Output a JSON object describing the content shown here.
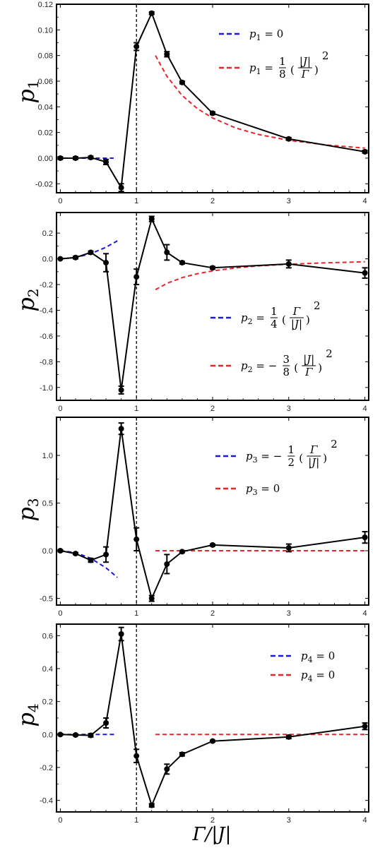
{
  "chart_data": [
    {
      "type": "line",
      "ylabel": "p1",
      "xlim": [
        -0.05,
        4.05
      ],
      "ylim": [
        -0.027,
        0.12
      ],
      "yticks": [
        -0.02,
        0.0,
        0.02,
        0.04,
        0.06,
        0.08,
        0.1,
        0.12
      ],
      "ytick_labels": [
        "-0.02",
        "0.00",
        "0.02",
        "0.04",
        "0.06",
        "0.08",
        "0.10",
        "0.12"
      ],
      "xticks": [
        0,
        1,
        2,
        3,
        4
      ],
      "xtick_labels": [
        "0",
        "1",
        "2",
        "3",
        "4"
      ],
      "vline_x": 1.0,
      "series": [
        {
          "kind": "data",
          "color": "#000000",
          "x": [
            0.0,
            0.2,
            0.4,
            0.6,
            0.8,
            1.0,
            1.2,
            1.4,
            1.6,
            2.0,
            3.0,
            4.0
          ],
          "y": [
            0.0,
            0.0,
            0.0005,
            -0.003,
            -0.023,
            0.087,
            0.113,
            0.081,
            0.059,
            0.035,
            0.015,
            0.005
          ],
          "err": [
            0.001,
            0.001,
            0.001,
            0.002,
            0.003,
            0.003,
            0.001,
            0.002,
            0.001,
            0.001,
            0.001,
            0.001
          ]
        },
        {
          "kind": "fit",
          "name": "p1 = 0",
          "color": "#1a1adf",
          "x": [
            0.0,
            0.7
          ],
          "y": [
            0.0,
            0.0
          ]
        },
        {
          "kind": "fit",
          "name": "p1 = (1/8)(|J|/Γ)^2",
          "color": "#e8262a",
          "x": [
            1.25,
            1.4,
            1.6,
            1.8,
            2.0,
            2.3,
            2.6,
            3.0,
            3.5,
            4.0
          ],
          "y": [
            0.08,
            0.0638,
            0.0488,
            0.0386,
            0.0313,
            0.0236,
            0.0185,
            0.0139,
            0.0102,
            0.0078
          ]
        }
      ],
      "legend": [
        {
          "lhs": "p",
          "sub": "1",
          "rhs": "= 0",
          "color": "#1a1adf"
        },
        {
          "lhs": "p",
          "sub": "1",
          "rhs": "=",
          "frac_num": "1",
          "frac_den": "8",
          "paren_num": "|J|",
          "paren_den": "Γ",
          "power": "2",
          "color": "#e8262a"
        }
      ]
    },
    {
      "type": "line",
      "ylabel": "p2",
      "xlim": [
        -0.05,
        4.05
      ],
      "ylim": [
        -1.1,
        0.36
      ],
      "yticks": [
        -1.0,
        -0.8,
        -0.6,
        -0.4,
        -0.2,
        0.0,
        0.2
      ],
      "ytick_labels": [
        "-1.0",
        "-0.8",
        "-0.6",
        "-0.4",
        "-0.2",
        "0.0",
        "0.2"
      ],
      "xticks": [
        0,
        1,
        2,
        3,
        4
      ],
      "xtick_labels": [
        "0",
        "1",
        "2",
        "3",
        "4"
      ],
      "vline_x": 1.0,
      "series": [
        {
          "kind": "data",
          "color": "#000000",
          "x": [
            0.0,
            0.2,
            0.4,
            0.6,
            0.8,
            1.0,
            1.2,
            1.4,
            1.6,
            2.0,
            3.0,
            4.0
          ],
          "y": [
            0.0,
            0.01,
            0.05,
            -0.03,
            -1.02,
            -0.14,
            0.31,
            0.05,
            -0.03,
            -0.07,
            -0.04,
            -0.11
          ],
          "err": [
            0.005,
            0.01,
            0.01,
            0.07,
            0.03,
            0.06,
            0.02,
            0.06,
            0.01,
            0.01,
            0.03,
            0.04
          ]
        },
        {
          "kind": "fit",
          "name": "p2 = (1/4)(Γ/|J|)^2",
          "color": "#1a1adf",
          "x": [
            0.0,
            0.2,
            0.4,
            0.6,
            0.75
          ],
          "y": [
            0.0,
            0.01,
            0.04,
            0.09,
            0.14
          ]
        },
        {
          "kind": "fit",
          "name": "p2 = -(3/8)(|J|/Γ)^2",
          "color": "#e8262a",
          "x": [
            1.25,
            1.4,
            1.6,
            1.8,
            2.0,
            2.3,
            2.6,
            3.0,
            3.5,
            4.0
          ],
          "y": [
            -0.24,
            -0.191,
            -0.146,
            -0.116,
            -0.094,
            -0.071,
            -0.055,
            -0.042,
            -0.031,
            -0.023
          ]
        }
      ],
      "legend": [
        {
          "lhs": "p",
          "sub": "2",
          "rhs": "=",
          "frac_num": "1",
          "frac_den": "4",
          "paren_num": "Γ",
          "paren_den": "|J|",
          "power": "2",
          "color": "#1a1adf"
        },
        {
          "lhs": "p",
          "sub": "2",
          "rhs": "= −",
          "frac_num": "3",
          "frac_den": "8",
          "paren_num": "|J|",
          "paren_den": "Γ",
          "power": "2",
          "color": "#e8262a"
        }
      ]
    },
    {
      "type": "line",
      "ylabel": "p3",
      "xlim": [
        -0.05,
        4.05
      ],
      "ylim": [
        -0.57,
        1.4
      ],
      "yticks": [
        -0.5,
        0.0,
        0.5,
        1.0
      ],
      "ytick_labels": [
        "-0.5",
        "0.0",
        "0.5",
        "1.0"
      ],
      "xticks": [
        0,
        1,
        2,
        3,
        4
      ],
      "xtick_labels": [
        "0",
        "1",
        "2",
        "3",
        "4"
      ],
      "vline_x": 1.0,
      "series": [
        {
          "kind": "data",
          "color": "#000000",
          "x": [
            0.0,
            0.2,
            0.4,
            0.6,
            0.8,
            1.0,
            1.2,
            1.4,
            1.6,
            2.0,
            3.0,
            4.0
          ],
          "y": [
            0.0,
            -0.03,
            -0.1,
            -0.04,
            1.28,
            0.12,
            -0.5,
            -0.14,
            -0.01,
            0.06,
            0.03,
            0.14
          ],
          "err": [
            0.01,
            0.01,
            0.02,
            0.08,
            0.06,
            0.12,
            0.03,
            0.1,
            0.01,
            0.01,
            0.04,
            0.06
          ]
        },
        {
          "kind": "fit",
          "name": "p3 = -(1/2)(Γ/|J|)^2",
          "color": "#1a1adf",
          "x": [
            0.0,
            0.2,
            0.4,
            0.6,
            0.75
          ],
          "y": [
            0.0,
            -0.02,
            -0.08,
            -0.18,
            -0.28
          ]
        },
        {
          "kind": "fit",
          "name": "p3 = 0",
          "color": "#e8262a",
          "x": [
            1.25,
            4.0
          ],
          "y": [
            0.0,
            0.0
          ]
        }
      ],
      "legend": [
        {
          "lhs": "p",
          "sub": "3",
          "rhs": "= −",
          "frac_num": "1",
          "frac_den": "2",
          "paren_num": "Γ",
          "paren_den": "|J|",
          "power": "2",
          "color": "#1a1adf"
        },
        {
          "lhs": "p",
          "sub": "3",
          "rhs": "= 0",
          "color": "#e8262a"
        }
      ]
    },
    {
      "type": "line",
      "ylabel": "p4",
      "xlim": [
        -0.05,
        4.05
      ],
      "ylim": [
        -0.47,
        0.67
      ],
      "yticks": [
        -0.4,
        -0.2,
        0.0,
        0.2,
        0.4,
        0.6
      ],
      "ytick_labels": [
        "-0.4",
        "-0.2",
        "0.0",
        "0.2",
        "0.4",
        "0.6"
      ],
      "xticks": [
        0,
        1,
        2,
        3,
        4
      ],
      "xtick_labels": [
        "0",
        "1",
        "2",
        "3",
        "4"
      ],
      "vline_x": 1.0,
      "series": [
        {
          "kind": "data",
          "color": "#000000",
          "x": [
            0.0,
            0.2,
            0.4,
            0.6,
            0.8,
            1.0,
            1.2,
            1.4,
            1.6,
            2.0,
            3.0,
            4.0
          ],
          "y": [
            0.0,
            -0.003,
            -0.005,
            0.07,
            0.61,
            -0.13,
            -0.43,
            -0.21,
            -0.12,
            -0.04,
            -0.015,
            0.05
          ],
          "err": [
            0.005,
            0.005,
            0.01,
            0.03,
            0.04,
            0.04,
            0.01,
            0.03,
            0.01,
            0.005,
            0.01,
            0.02
          ]
        },
        {
          "kind": "fit",
          "name": "p4 = 0",
          "color": "#1a1adf",
          "x": [
            0.0,
            0.72
          ],
          "y": [
            0.0,
            0.0
          ]
        },
        {
          "kind": "fit",
          "name": "p4 = 0",
          "color": "#e8262a",
          "x": [
            1.25,
            4.0
          ],
          "y": [
            0.0,
            0.0
          ]
        }
      ],
      "legend": [
        {
          "lhs": "p",
          "sub": "4",
          "rhs": "= 0",
          "color": "#1a1adf"
        },
        {
          "lhs": "p",
          "sub": "4",
          "rhs": "= 0",
          "color": "#e8262a"
        }
      ]
    }
  ],
  "xlabel": "Γ/|J|"
}
